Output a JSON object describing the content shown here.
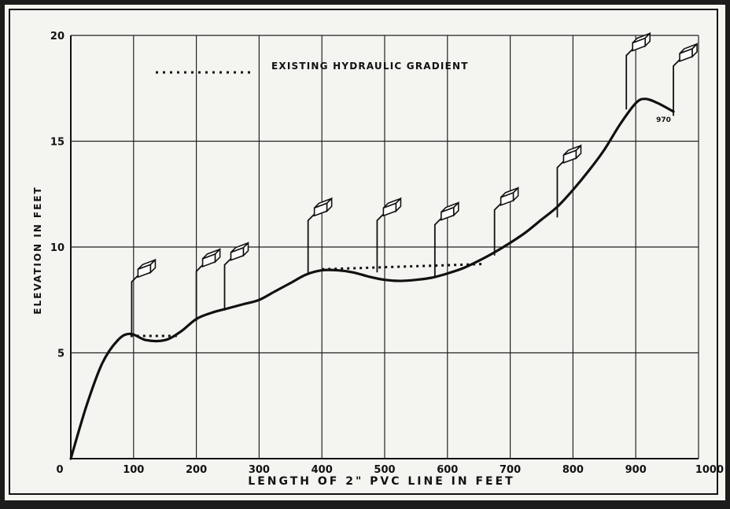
{
  "chart_data": {
    "type": "line",
    "title": "",
    "xlabel": "LENGTH OF 2\" PVC LINE IN FEET",
    "ylabel": "ELEVATION IN FEET",
    "xlim": [
      0,
      1000
    ],
    "ylim": [
      0,
      20
    ],
    "grid": true,
    "x_ticks": [
      0,
      100,
      200,
      300,
      400,
      500,
      600,
      700,
      800,
      900,
      1000
    ],
    "x_tick_labels": [
      "0",
      "100",
      "200",
      "300",
      "400",
      "500",
      "600",
      "700",
      "800",
      "900",
      "1000"
    ],
    "y_ticks": [
      5,
      10,
      15,
      20
    ],
    "y_tick_labels": [
      "5",
      "10",
      "15",
      "20"
    ],
    "legend": {
      "label": "EXISTING HYDRAULIC GRADIENT",
      "placement": "top-left"
    },
    "series": [
      {
        "name": "",
        "x": [
          0,
          25,
          50,
          75,
          95,
          120,
          150,
          175,
          200,
          225,
          250,
          275,
          300,
          325,
          350,
          375,
          400,
          425,
          450,
          475,
          500,
          525,
          550,
          575,
          600,
          625,
          650,
          675,
          700,
          725,
          750,
          775,
          800,
          825,
          850,
          875,
          900,
          915,
          935,
          960
        ],
        "y": [
          0,
          2.5,
          4.5,
          5.6,
          5.9,
          5.6,
          5.6,
          6.0,
          6.6,
          6.9,
          7.1,
          7.3,
          7.5,
          7.9,
          8.3,
          8.7,
          8.9,
          8.9,
          8.8,
          8.6,
          8.45,
          8.4,
          8.45,
          8.55,
          8.75,
          9.0,
          9.35,
          9.75,
          10.2,
          10.7,
          11.3,
          11.9,
          12.7,
          13.6,
          14.6,
          15.8,
          16.8,
          17.0,
          16.8,
          16.4
        ]
      }
    ],
    "hydraulic_gradient": [
      {
        "x": [
          95,
          170
        ],
        "y": [
          5.8,
          5.8
        ]
      },
      {
        "x": [
          400,
          660
        ],
        "y": [
          8.95,
          9.2
        ]
      }
    ],
    "annotations": [
      {
        "text": "970",
        "x": 960,
        "y": 16.2
      }
    ],
    "outlets": [
      {
        "x": 97,
        "base": 5.8,
        "top": 8.8
      },
      {
        "x": 200,
        "base": 6.5,
        "top": 9.3
      },
      {
        "x": 245,
        "base": 7.0,
        "top": 9.6
      },
      {
        "x": 378,
        "base": 8.7,
        "top": 11.7
      },
      {
        "x": 488,
        "base": 8.8,
        "top": 11.7
      },
      {
        "x": 580,
        "base": 8.6,
        "top": 11.5
      },
      {
        "x": 675,
        "base": 9.6,
        "top": 12.2
      },
      {
        "x": 775,
        "base": 11.4,
        "top": 14.2
      },
      {
        "x": 885,
        "base": 16.5,
        "top": 19.5
      },
      {
        "x": 960,
        "base": 16.2,
        "top": 19.0
      }
    ]
  }
}
